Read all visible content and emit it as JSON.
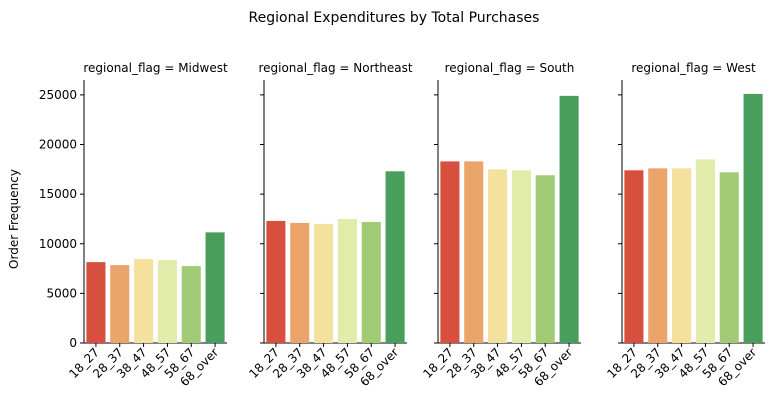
{
  "chart_data": {
    "type": "bar",
    "title": "Regional Expenditures by Total Purchases",
    "ylabel": "Order Frequency",
    "xlabel": "",
    "ylim": [
      0,
      26500
    ],
    "yticks": [
      0,
      5000,
      10000,
      15000,
      20000,
      25000
    ],
    "ytick_labels": [
      "0",
      "5000",
      "10000",
      "15000",
      "20000",
      "25000"
    ],
    "categories": [
      "18_27",
      "28_37",
      "38_47",
      "48_57",
      "58_67",
      "68_over"
    ],
    "colors": [
      "#d7503e",
      "#eba56b",
      "#f5e19e",
      "#e1ebaa",
      "#a0ca74",
      "#4a9e5c"
    ],
    "grid": false,
    "legend": "none",
    "facets": [
      {
        "title": "regional_flag = Midwest",
        "values": [
          8150,
          7850,
          8450,
          8350,
          7750,
          11150
        ]
      },
      {
        "title": "regional_flag = Northeast",
        "values": [
          12300,
          12100,
          12000,
          12500,
          12200,
          17300
        ]
      },
      {
        "title": "regional_flag = South",
        "values": [
          18300,
          18300,
          17500,
          17400,
          16900,
          24900
        ]
      },
      {
        "title": "regional_flag = West",
        "values": [
          17400,
          17600,
          17600,
          18500,
          17200,
          25100
        ]
      }
    ]
  }
}
